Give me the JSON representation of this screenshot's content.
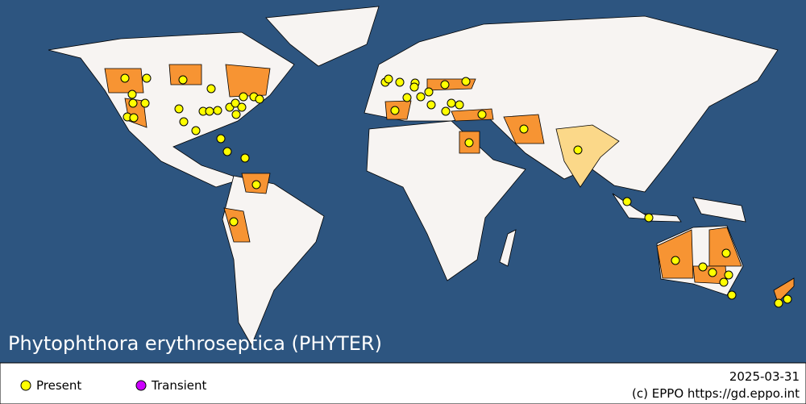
{
  "title": "Phytophthora erythroseptica (PHYTER)",
  "legend": [
    "Present",
    "Transient"
  ],
  "date": "2025-03-31",
  "credit": "(c) EPPO https://gd.eppo.int"
}
